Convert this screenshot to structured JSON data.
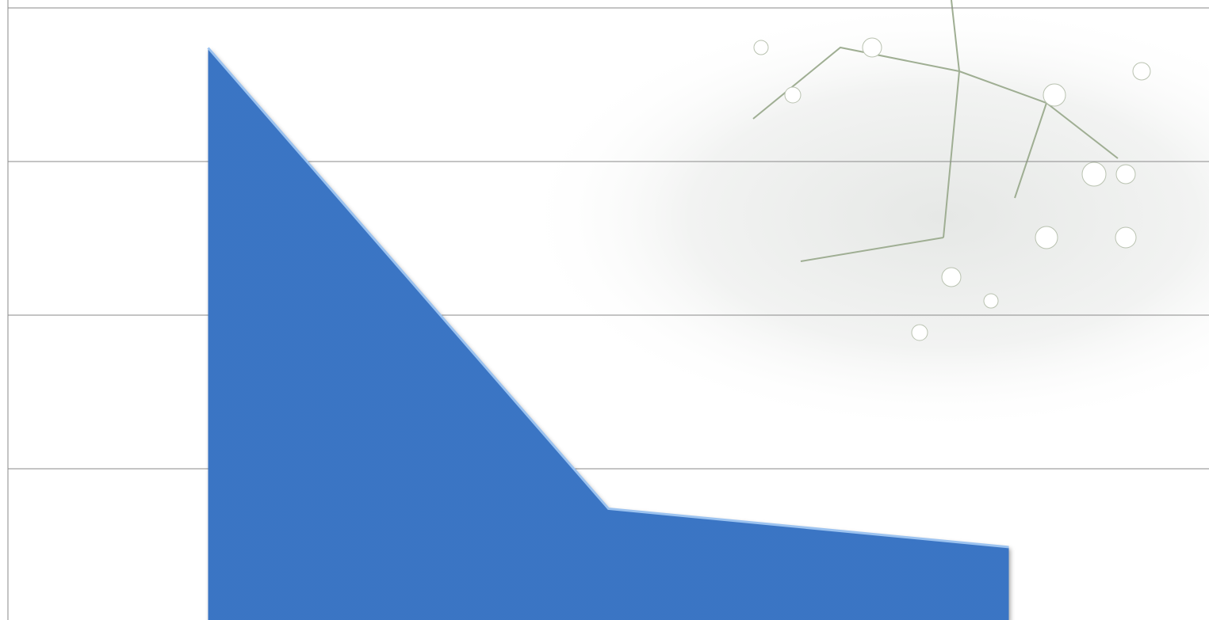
{
  "chart_data": {
    "type": "area",
    "categories": [
      null,
      null,
      null
    ],
    "values": [
      3.74,
      0.74,
      0.49
    ],
    "color": "#3a75c4",
    "ylim": [
      0,
      4
    ],
    "yticks": [
      1,
      2,
      3,
      4
    ],
    "grid": true
  }
}
